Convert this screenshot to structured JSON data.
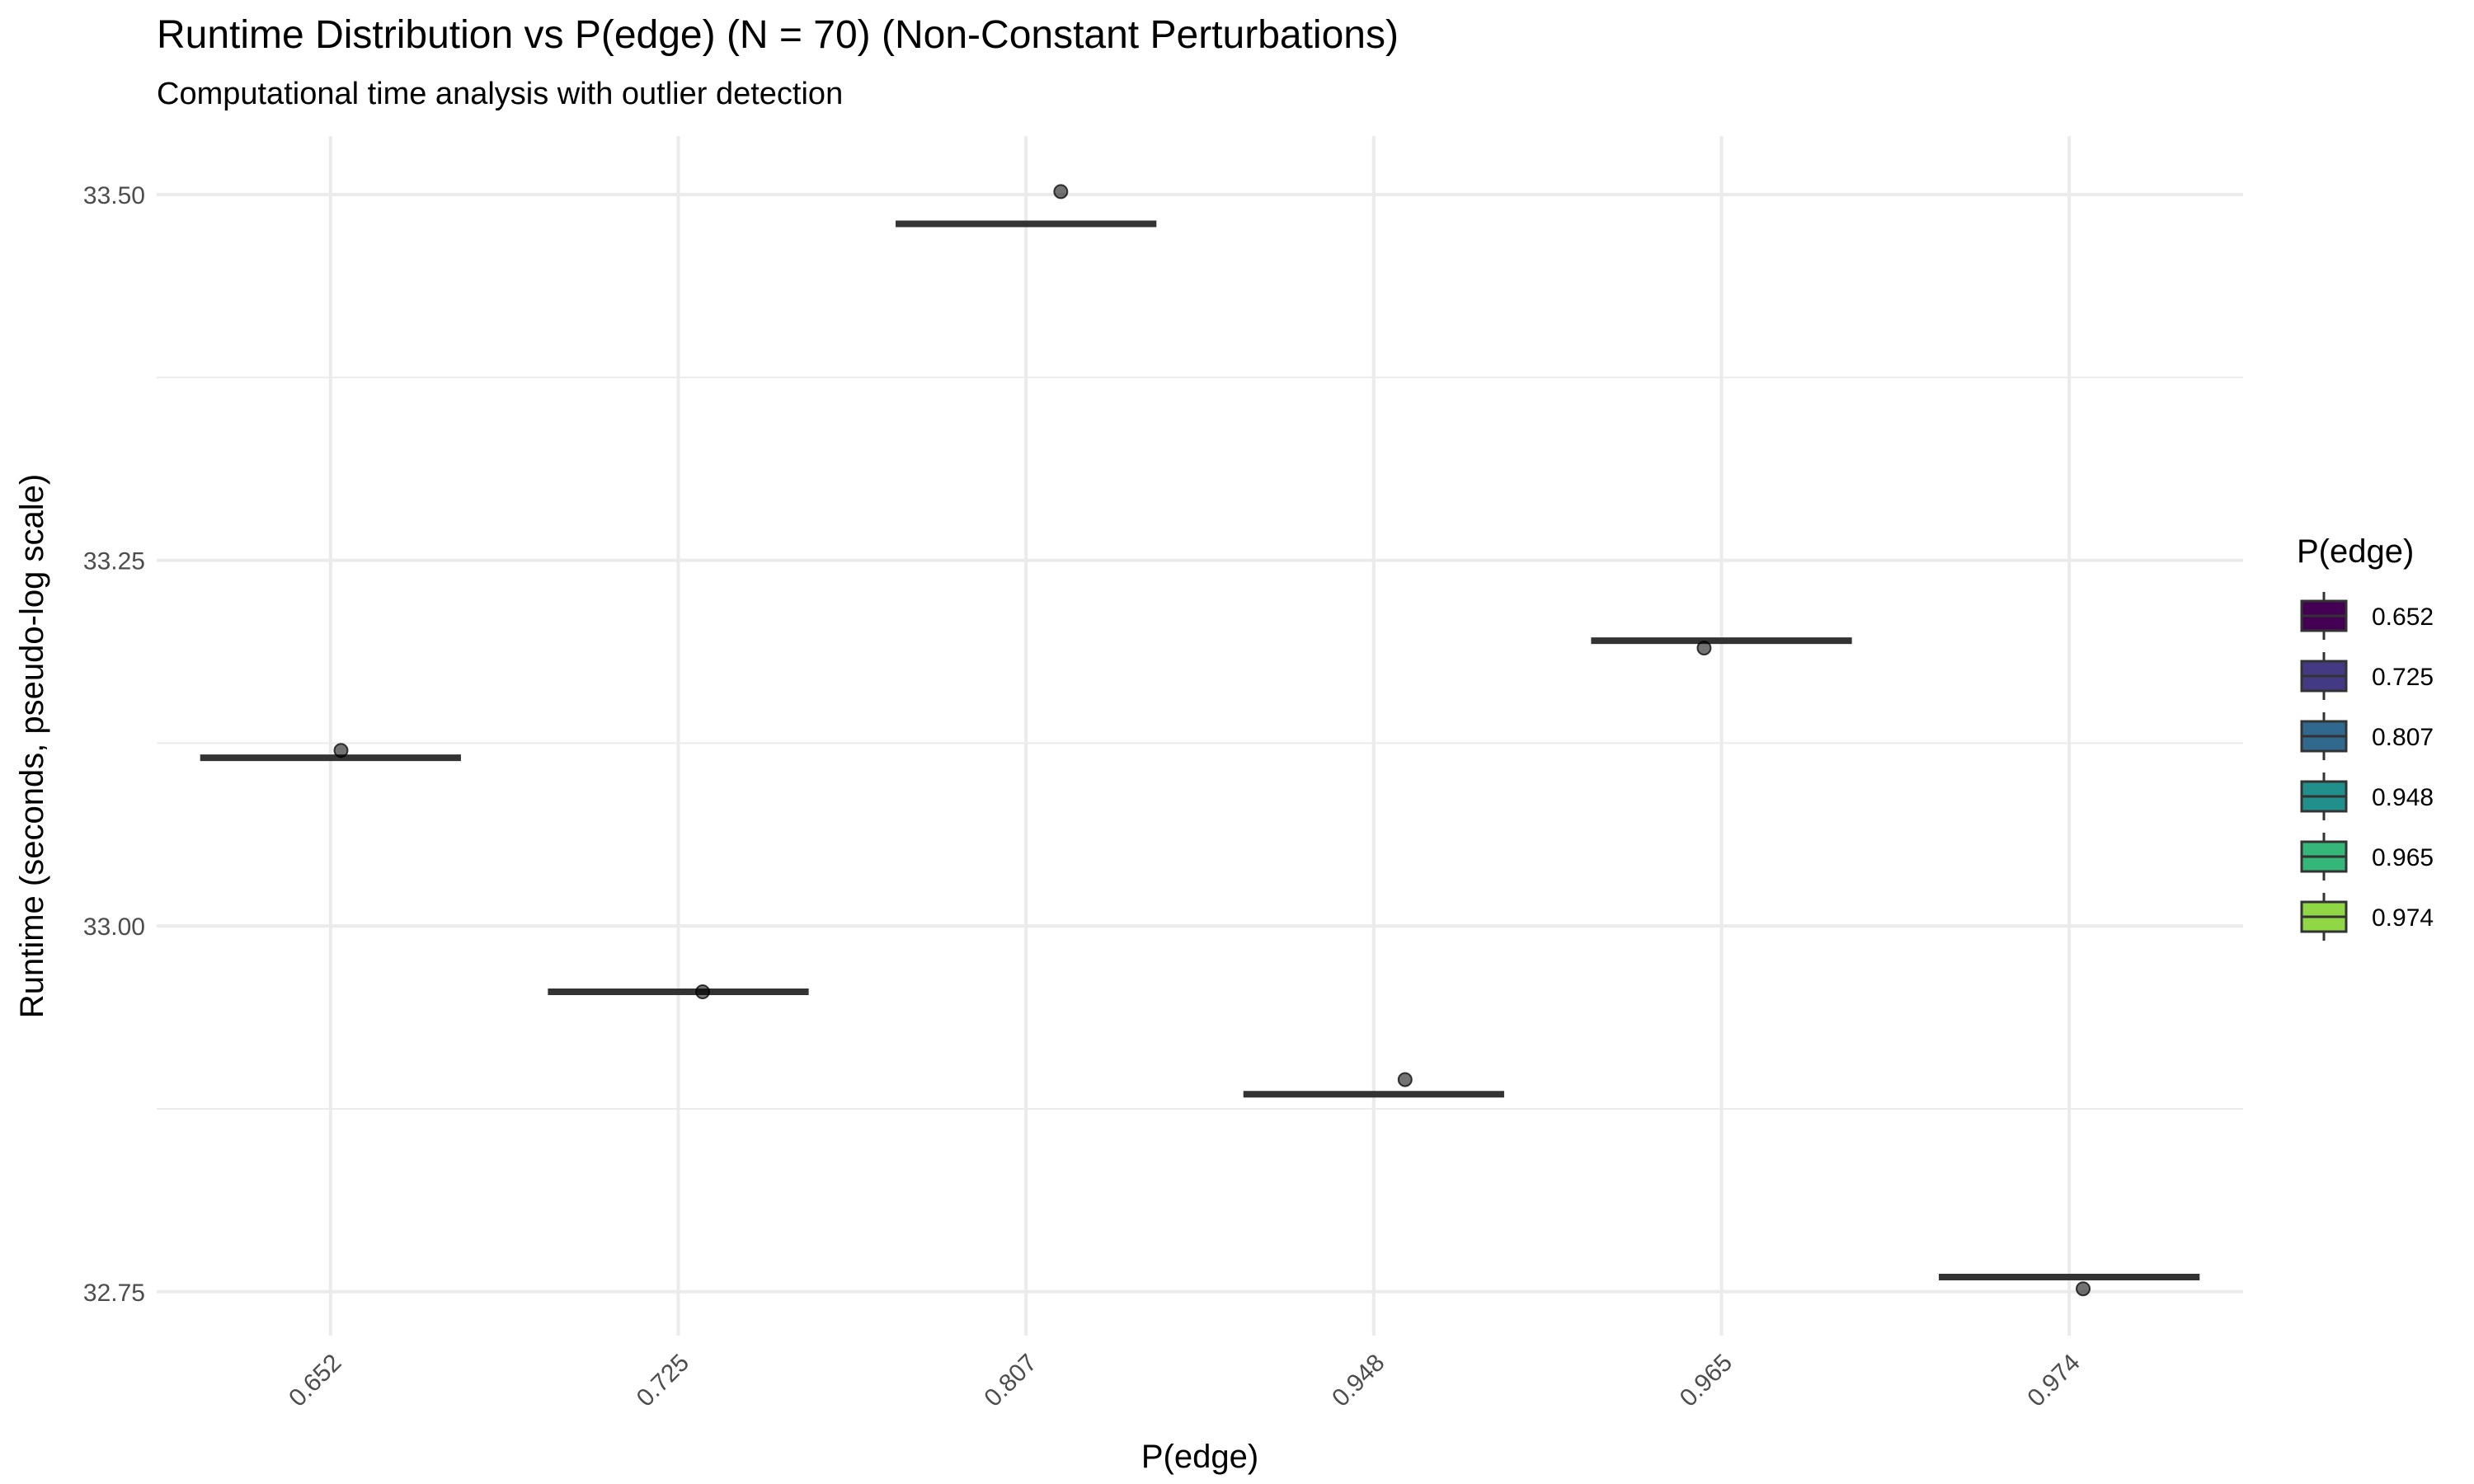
{
  "chart_data": {
    "type": "box",
    "title": "Runtime Distribution vs P(edge) (N = 70) (Non-Constant Perturbations)",
    "subtitle": "Computational time analysis with outlier detection",
    "xlabel": "P(edge)",
    "ylabel": "Runtime (seconds, pseudo-log scale)",
    "categories": [
      "0.652",
      "0.725",
      "0.807",
      "0.948",
      "0.965",
      "0.974"
    ],
    "medians": [
      33.115,
      32.955,
      33.48,
      32.885,
      33.195,
      32.76
    ],
    "points": [
      {
        "category": "0.652",
        "y": 33.12
      },
      {
        "category": "0.725",
        "y": 32.955
      },
      {
        "category": "0.807",
        "y": 33.502
      },
      {
        "category": "0.948",
        "y": 32.895
      },
      {
        "category": "0.965",
        "y": 33.19
      },
      {
        "category": "0.974",
        "y": 32.752
      }
    ],
    "ylim": [
      32.72,
      33.54
    ],
    "yticks": [
      32.75,
      33.0,
      33.25,
      33.5
    ],
    "ytick_labels": [
      "32.75",
      "33.00",
      "33.25",
      "33.50"
    ],
    "y_scale": "pseudo-log",
    "grid": true,
    "legend": {
      "title": "P(edge)",
      "position": "right",
      "entries": [
        {
          "label": "0.652",
          "color": "#440154"
        },
        {
          "label": "0.725",
          "color": "#443A83"
        },
        {
          "label": "0.807",
          "color": "#31688E"
        },
        {
          "label": "0.948",
          "color": "#21908C"
        },
        {
          "label": "0.965",
          "color": "#35B779"
        },
        {
          "label": "0.974",
          "color": "#8FD744"
        }
      ]
    }
  }
}
